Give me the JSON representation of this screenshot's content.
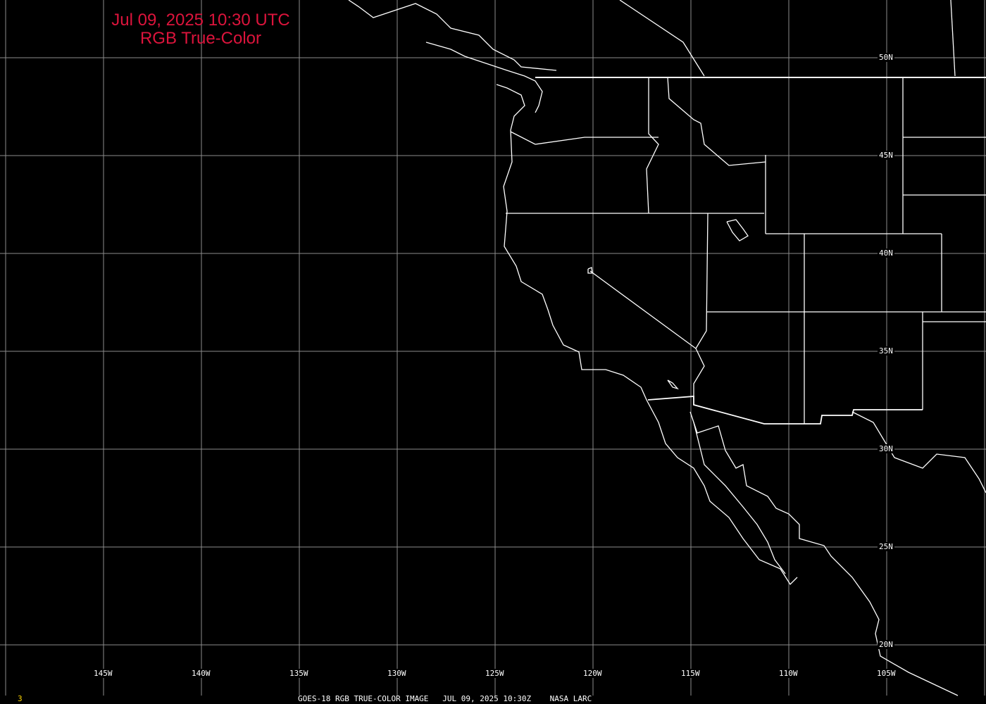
{
  "title": {
    "line1": "Jul 09, 2025 10:30 UTC",
    "line2": "RGB True-Color"
  },
  "colors": {
    "title": "#dc143c",
    "grid": "#8c8c8c",
    "coast": "#ffffff",
    "frame_number": "#ffd700"
  },
  "longitude_labels": [
    "145W",
    "140W",
    "135W",
    "130W",
    "125W",
    "120W",
    "115W",
    "110W",
    "105W"
  ],
  "latitude_labels": [
    "50N",
    "45N",
    "40N",
    "35N",
    "30N",
    "25N",
    "20N"
  ],
  "footer": {
    "frame_number": "3",
    "caption": "GOES-18 RGB TRUE-COLOR IMAGE   JUL 09, 2025 10:30Z    NASA LARC"
  }
}
